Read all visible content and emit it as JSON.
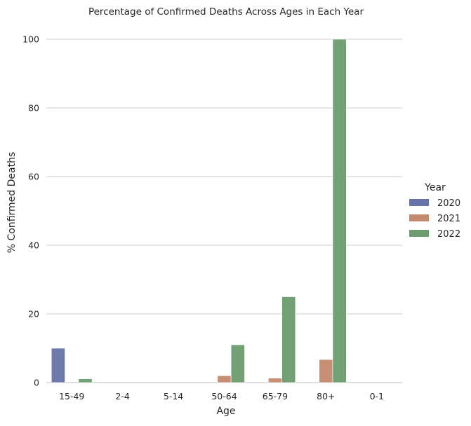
{
  "chart_data": {
    "type": "bar",
    "title": "Percentage of Confirmed Deaths Across Ages in Each Year",
    "xlabel": "Age",
    "ylabel": "% Confirmed Deaths",
    "categories": [
      "15-49",
      "2-4",
      "5-14",
      "50-64",
      "65-79",
      "80+",
      "0-1"
    ],
    "ylim": [
      0,
      100
    ],
    "yticks": [
      0,
      20,
      40,
      60,
      80,
      100
    ],
    "grid": "horizontal",
    "legend": {
      "title": "Year",
      "placement": "right"
    },
    "series": [
      {
        "name": "2020",
        "color": "#6673a8",
        "values": [
          10.0,
          0,
          0,
          0,
          0,
          0,
          0
        ]
      },
      {
        "name": "2021",
        "color": "#c48a6f",
        "values": [
          0,
          0,
          0,
          2.0,
          1.3,
          6.7,
          0
        ]
      },
      {
        "name": "2022",
        "color": "#6c9c6f",
        "values": [
          1.1,
          0,
          0,
          11.0,
          25.0,
          100.0,
          0
        ]
      }
    ]
  }
}
